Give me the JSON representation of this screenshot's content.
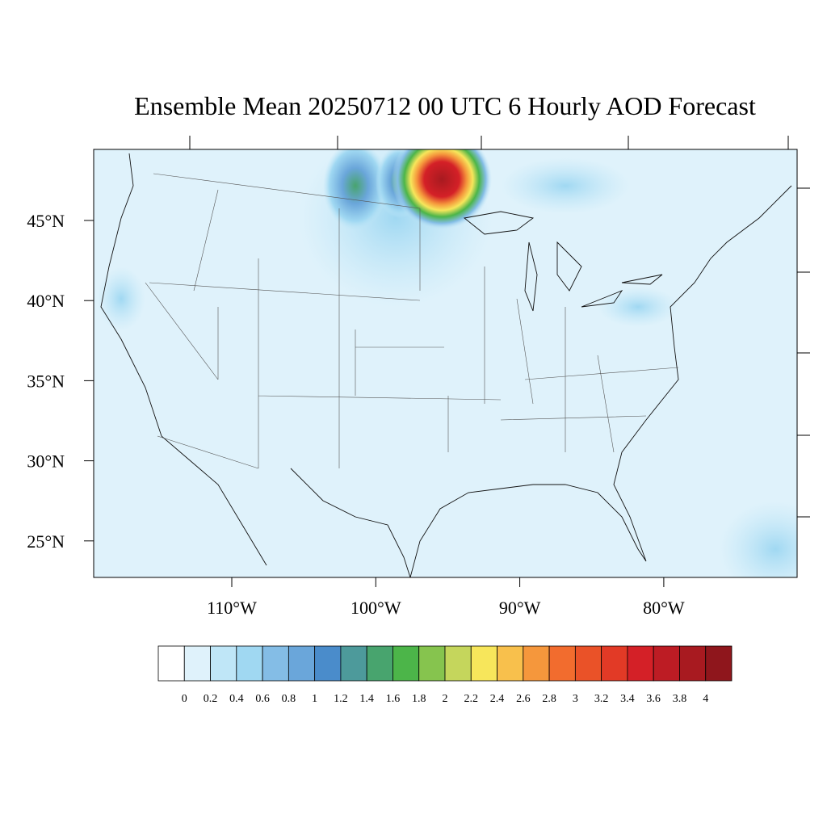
{
  "title": "Ensemble Mean 20250712 00 UTC 6 Hourly AOD Forecast",
  "map": {
    "lat_labels": [
      "45°N",
      "40°N",
      "35°N",
      "30°N",
      "25°N"
    ],
    "lon_labels": [
      "110°W",
      "100°W",
      "90°W",
      "80°W"
    ]
  },
  "colorbar": {
    "colors": [
      "#ffffff",
      "#dff2fb",
      "#bfe6f7",
      "#a0d8f2",
      "#84bde6",
      "#6aa6da",
      "#4a8ccb",
      "#4d9a9b",
      "#48a46e",
      "#4cb549",
      "#86c44e",
      "#c5d65c",
      "#f7e65b",
      "#f8c04c",
      "#f5973c",
      "#f26c2e",
      "#ea5228",
      "#e23a26",
      "#d42027",
      "#bd1c24",
      "#a81a20",
      "#8f161c"
    ],
    "ticks": [
      0,
      0.2,
      0.4,
      0.6,
      0.8,
      1,
      1.2,
      1.4,
      1.6,
      1.8,
      2,
      2.2,
      2.4,
      2.6,
      2.8,
      3,
      3.2,
      3.4,
      3.6,
      3.8,
      4
    ]
  }
}
